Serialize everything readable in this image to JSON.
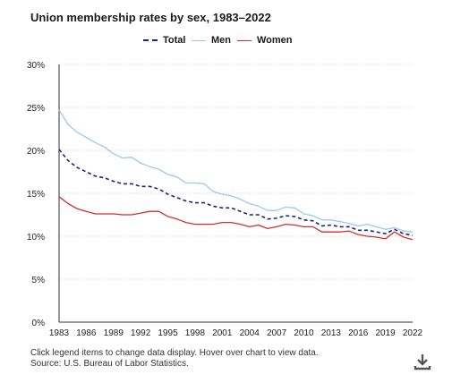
{
  "chart_data": {
    "type": "line",
    "title": "Union membership rates by sex, 1983–2022",
    "xlabel": "",
    "ylabel": "",
    "x": [
      1983,
      1984,
      1985,
      1986,
      1987,
      1988,
      1989,
      1990,
      1991,
      1992,
      1993,
      1994,
      1995,
      1996,
      1997,
      1998,
      1999,
      2000,
      2001,
      2002,
      2003,
      2004,
      2005,
      2006,
      2007,
      2008,
      2009,
      2010,
      2011,
      2012,
      2013,
      2014,
      2015,
      2016,
      2017,
      2018,
      2019,
      2020,
      2021,
      2022
    ],
    "xticks": [
      "1983",
      "1986",
      "1989",
      "1992",
      "1995",
      "1998",
      "2001",
      "2004",
      "2007",
      "2010",
      "2013",
      "2016",
      "2019",
      "2022"
    ],
    "yticks": [
      "0%",
      "5%",
      "10%",
      "15%",
      "20%",
      "25%",
      "30%"
    ],
    "ylim": [
      0,
      30
    ],
    "grid": true,
    "legend_position": "top",
    "series": [
      {
        "name": "Total",
        "color": "#1a237e",
        "style": "dashed",
        "values": [
          20.1,
          18.8,
          18.0,
          17.5,
          17.0,
          16.8,
          16.4,
          16.1,
          16.1,
          15.8,
          15.8,
          15.5,
          14.9,
          14.5,
          14.1,
          13.9,
          13.9,
          13.5,
          13.3,
          13.3,
          12.9,
          12.5,
          12.5,
          12.0,
          12.1,
          12.4,
          12.3,
          11.9,
          11.8,
          11.2,
          11.3,
          11.1,
          11.1,
          10.7,
          10.7,
          10.5,
          10.3,
          10.8,
          10.3,
          10.1
        ]
      },
      {
        "name": "Men",
        "color": "#9dc8ee",
        "style": "solid",
        "values": [
          24.7,
          23.0,
          22.1,
          21.5,
          20.9,
          20.4,
          19.6,
          19.1,
          19.2,
          18.5,
          18.1,
          17.8,
          17.2,
          16.9,
          16.2,
          16.2,
          16.1,
          15.2,
          14.9,
          14.7,
          14.3,
          13.8,
          13.5,
          13.0,
          13.0,
          13.4,
          13.3,
          12.6,
          12.4,
          11.9,
          11.9,
          11.7,
          11.5,
          11.2,
          11.4,
          11.1,
          10.8,
          11.0,
          10.6,
          10.5
        ]
      },
      {
        "name": "Women",
        "color": "#d32f2f",
        "style": "solid",
        "values": [
          14.6,
          13.8,
          13.2,
          12.9,
          12.6,
          12.6,
          12.6,
          12.5,
          12.5,
          12.7,
          12.9,
          12.9,
          12.3,
          12.0,
          11.6,
          11.4,
          11.4,
          11.4,
          11.6,
          11.6,
          11.4,
          11.1,
          11.3,
          10.9,
          11.1,
          11.4,
          11.3,
          11.1,
          11.1,
          10.5,
          10.5,
          10.5,
          10.6,
          10.2,
          10.0,
          9.9,
          9.7,
          10.5,
          9.9,
          9.6
        ]
      }
    ]
  },
  "notes": {
    "line1": "Click legend items to change data display. Hover over chart to view data.",
    "line2": "Source: U.S. Bureau of Labor Statistics."
  },
  "icons": {
    "download": "download-icon"
  }
}
